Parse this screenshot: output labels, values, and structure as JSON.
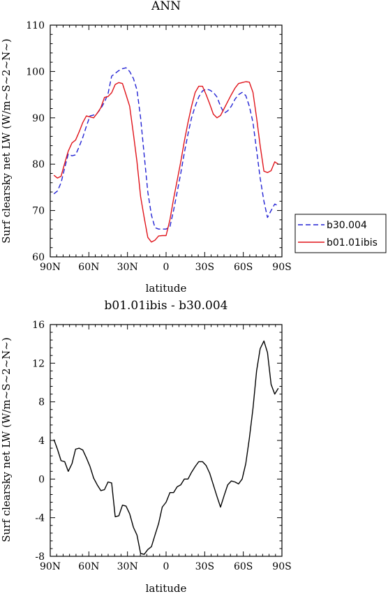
{
  "chart_data": [
    {
      "type": "line",
      "title": "ANN",
      "xlabel": "latitude",
      "ylabel": "Surf clearsky net LW (W/m~S~2~N~)",
      "x_reversed": true,
      "xlim": [
        90,
        -90
      ],
      "ylim": [
        60,
        110
      ],
      "xticks": [
        {
          "value": 90,
          "label": "90N"
        },
        {
          "value": 60,
          "label": "60N"
        },
        {
          "value": 30,
          "label": "30N"
        },
        {
          "value": 0,
          "label": "0"
        },
        {
          "value": -30,
          "label": "30S"
        },
        {
          "value": -60,
          "label": "60S"
        },
        {
          "value": -90,
          "label": "90S"
        }
      ],
      "yticks": [
        60,
        70,
        80,
        90,
        100,
        110
      ],
      "grid": false,
      "legend_position": "right",
      "series": [
        {
          "name": "b30.004",
          "color": "#2323d4",
          "dash": true,
          "x": [
            87.2,
            84.4,
            81.6,
            78.8,
            76.0,
            73.1,
            70.3,
            67.5,
            64.7,
            61.9,
            59.1,
            56.3,
            53.5,
            50.7,
            47.9,
            45.1,
            42.3,
            39.5,
            36.7,
            33.9,
            31.1,
            28.3,
            25.4,
            22.6,
            19.8,
            17.0,
            14.2,
            11.4,
            8.6,
            5.8,
            3.0,
            0.0,
            -3.0,
            -5.8,
            -8.6,
            -11.4,
            -14.2,
            -17.0,
            -19.8,
            -22.6,
            -25.4,
            -28.3,
            -31.1,
            -33.9,
            -36.7,
            -39.5,
            -42.3,
            -45.1,
            -47.9,
            -50.7,
            -53.5,
            -56.3,
            -59.1,
            -61.9,
            -64.7,
            -67.5,
            -70.3,
            -73.1,
            -76.0,
            -78.8,
            -81.6,
            -84.4,
            -87.2
          ],
          "y": [
            73.6,
            74.2,
            76.0,
            79.2,
            82.2,
            81.8,
            82.0,
            83.8,
            85.8,
            88.2,
            90.4,
            90.6,
            91.0,
            92.0,
            93.4,
            95.2,
            99.0,
            99.6,
            100.2,
            100.6,
            100.8,
            100.0,
            98.5,
            96.0,
            90.0,
            82.0,
            74.0,
            69.0,
            66.3,
            66.0,
            66.0,
            66.0,
            66.5,
            70.0,
            74.0,
            78.0,
            82.5,
            86.5,
            90.0,
            92.5,
            94.5,
            95.8,
            96.2,
            96.0,
            95.5,
            94.5,
            92.5,
            91.0,
            91.5,
            92.5,
            94.0,
            95.0,
            95.5,
            94.8,
            92.5,
            89.0,
            83.0,
            77.0,
            72.0,
            68.5,
            70.0,
            71.4,
            71.0
          ]
        },
        {
          "name": "b01.01ibis",
          "color": "#e0131a",
          "dash": false,
          "x": [
            87.2,
            84.4,
            81.6,
            78.8,
            76.0,
            73.1,
            70.3,
            67.5,
            64.7,
            61.9,
            59.1,
            56.3,
            53.5,
            50.7,
            47.9,
            45.1,
            42.3,
            39.5,
            36.7,
            33.9,
            31.1,
            28.3,
            25.4,
            22.6,
            19.8,
            17.0,
            14.2,
            11.4,
            8.6,
            5.8,
            3.0,
            0.0,
            -3.0,
            -5.8,
            -8.6,
            -11.4,
            -14.2,
            -17.0,
            -19.8,
            -22.6,
            -25.4,
            -28.3,
            -31.1,
            -33.9,
            -36.7,
            -39.5,
            -42.3,
            -45.1,
            -47.9,
            -50.7,
            -53.5,
            -56.3,
            -59.1,
            -61.9,
            -64.7,
            -67.5,
            -70.3,
            -73.1,
            -76.0,
            -78.8,
            -81.6,
            -84.4,
            -87.2
          ],
          "y": [
            77.6,
            77.0,
            77.4,
            80.2,
            82.8,
            84.6,
            85.2,
            87.0,
            89.0,
            90.4,
            90.2,
            90.0,
            91.0,
            92.2,
            94.4,
            94.6,
            95.4,
            97.2,
            97.6,
            97.4,
            95.0,
            92.5,
            86.5,
            80.5,
            73.0,
            68.5,
            64.2,
            63.2,
            63.6,
            64.5,
            64.6,
            64.6,
            68.0,
            72.5,
            76.5,
            80.5,
            85.0,
            89.0,
            92.5,
            95.5,
            96.8,
            96.8,
            95.0,
            93.0,
            90.8,
            90.0,
            90.5,
            92.0,
            93.5,
            95.0,
            96.4,
            97.4,
            97.6,
            97.8,
            97.7,
            95.5,
            90.0,
            84.0,
            78.5,
            78.2,
            78.6,
            80.5,
            80.0
          ]
        }
      ]
    },
    {
      "type": "line",
      "title": "b01.01ibis - b30.004",
      "xlabel": "latitude",
      "ylabel": "Surf clearsky net LW (W/m~S~2~N~)",
      "x_reversed": true,
      "xlim": [
        90,
        -90
      ],
      "ylim": [
        -8,
        16
      ],
      "xticks": [
        {
          "value": 90,
          "label": "90N"
        },
        {
          "value": 60,
          "label": "60N"
        },
        {
          "value": 30,
          "label": "30N"
        },
        {
          "value": 0,
          "label": "0"
        },
        {
          "value": -30,
          "label": "30S"
        },
        {
          "value": -60,
          "label": "60S"
        },
        {
          "value": -90,
          "label": "90S"
        }
      ],
      "yticks": [
        -8,
        -4,
        0,
        4,
        8,
        12,
        16
      ],
      "grid": false,
      "series": [
        {
          "color": "#000000",
          "dash": false,
          "x": [
            87.2,
            84.4,
            81.6,
            78.8,
            76.0,
            73.1,
            70.3,
            67.5,
            64.7,
            61.9,
            59.1,
            56.3,
            53.5,
            50.7,
            47.9,
            45.1,
            42.3,
            39.5,
            36.7,
            33.9,
            31.1,
            28.3,
            25.4,
            22.6,
            19.8,
            17.0,
            14.2,
            11.4,
            8.6,
            5.8,
            3.0,
            0.0,
            -3.0,
            -5.8,
            -8.6,
            -11.4,
            -14.2,
            -17.0,
            -19.8,
            -22.6,
            -25.4,
            -28.3,
            -31.1,
            -33.9,
            -36.7,
            -39.5,
            -42.3,
            -45.1,
            -47.9,
            -50.7,
            -53.5,
            -56.3,
            -59.1,
            -61.9,
            -64.7,
            -67.5,
            -70.3,
            -73.1,
            -76.0,
            -78.8,
            -81.6,
            -84.4,
            -87.2
          ],
          "y": [
            4.1,
            3.1,
            1.9,
            1.8,
            0.8,
            1.6,
            3.1,
            3.2,
            3.0,
            2.2,
            1.3,
            0.1,
            -0.6,
            -1.2,
            -1.1,
            -0.3,
            -0.4,
            -3.9,
            -3.8,
            -2.7,
            -2.8,
            -3.6,
            -5.0,
            -5.8,
            -7.7,
            -7.8,
            -7.3,
            -7.0,
            -5.8,
            -4.6,
            -2.9,
            -2.4,
            -1.4,
            -1.4,
            -0.8,
            -0.6,
            0.0,
            0.0,
            0.7,
            1.3,
            1.8,
            1.8,
            1.4,
            0.6,
            -0.6,
            -1.8,
            -2.9,
            -1.7,
            -0.6,
            -0.2,
            -0.3,
            -0.5,
            0.0,
            1.6,
            4.2,
            7.3,
            11.2,
            13.5,
            14.3,
            13.1,
            9.8,
            8.8,
            9.4
          ]
        }
      ]
    }
  ]
}
